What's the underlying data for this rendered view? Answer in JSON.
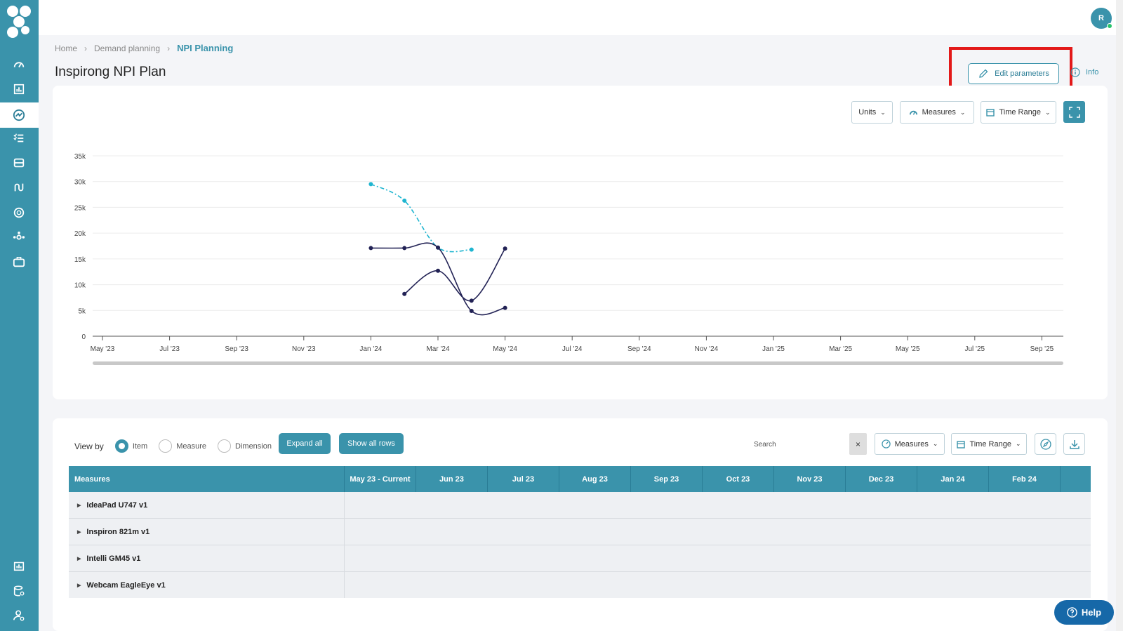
{
  "user": {
    "initial": "R"
  },
  "breadcrumb": {
    "home": "Home",
    "section": "Demand planning",
    "current": "NPI Planning"
  },
  "page": {
    "title": "Inspirong NPI Plan"
  },
  "actions": {
    "edit_label": "Edit parameters",
    "info_label": "Info"
  },
  "chart_controls": {
    "units": "Units",
    "measures": "Measures",
    "time_range": "Time Range"
  },
  "chart_data": {
    "type": "line",
    "x": [
      "May '23",
      "Jul '23",
      "Sep '23",
      "Nov '23",
      "Jan '24",
      "Mar '24",
      "May '24",
      "Jul '24",
      "Sep '24",
      "Nov '24",
      "Jan '25",
      "Mar '25",
      "May '25",
      "Jul '25",
      "Sep '25"
    ],
    "y_ticks": [
      "0",
      "5k",
      "10k",
      "15k",
      "20k",
      "25k",
      "30k",
      "35k"
    ],
    "ylim": [
      0,
      35000
    ],
    "grid": true,
    "series": [
      {
        "color": "#1fb5d0",
        "style": "dashed",
        "points": [
          [
            "2024-01",
            29500
          ],
          [
            "2024-02",
            26300
          ],
          [
            "2024-03",
            17200
          ],
          [
            "2024-04",
            16800
          ]
        ]
      },
      {
        "color": "#222255",
        "style": "solid",
        "points": [
          [
            "2024-01",
            17100
          ],
          [
            "2024-02",
            17100
          ],
          [
            "2024-03",
            17200
          ],
          [
            "2024-04",
            4900
          ],
          [
            "2024-05",
            5500
          ]
        ]
      },
      {
        "color": "#222255",
        "style": "solid",
        "points": [
          [
            "2024-02",
            8200
          ],
          [
            "2024-03",
            12700
          ],
          [
            "2024-04",
            6900
          ],
          [
            "2024-05",
            17000
          ]
        ]
      }
    ]
  },
  "table_controls": {
    "view_by_label": "View by",
    "view_options": [
      "Item",
      "Measure",
      "Dimension"
    ],
    "expand_all": "Expand all",
    "show_all_rows": "Show all rows",
    "search_label": "Search",
    "clear": "×",
    "measures": "Measures",
    "time_range": "Time Range"
  },
  "grid": {
    "first_header": "Measures",
    "columns": [
      "May 23 - Current",
      "Jun 23",
      "Jul 23",
      "Aug 23",
      "Sep 23",
      "Oct 23",
      "Nov 23",
      "Dec 23",
      "Jan 24",
      "Feb 24"
    ],
    "rows": [
      "IdeaPad U747 v1",
      "Inspiron 821m v1",
      "Intelli GM45 v1",
      "Webcam EagleEye v1"
    ]
  },
  "help": {
    "label": "Help"
  },
  "colors": {
    "accent": "#3a93ab",
    "highlight": "#e31919",
    "help": "#1668a8"
  }
}
